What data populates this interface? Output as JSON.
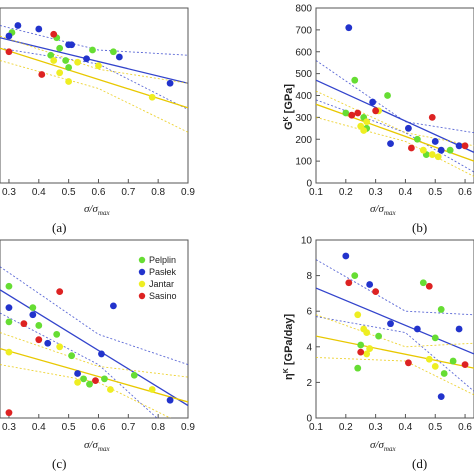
{
  "chart_data": [
    {
      "panel": "(a)",
      "type": "scatter",
      "xlabel": "σ/σmax",
      "ylabel": "",
      "x_ticks": [
        "0.3",
        "0.4",
        "0.5",
        "0.6",
        "0.7",
        "0.8",
        "0.9"
      ],
      "y_ticks": [],
      "xlim": [
        0.27,
        0.9
      ],
      "ylim": [
        0,
        10
      ],
      "series": [
        {
          "name": "Pelplin",
          "color": "#66dd33",
          "points": [
            [
              0.31,
              8.6
            ],
            [
              0.46,
              8.3
            ],
            [
              0.47,
              7.7
            ],
            [
              0.49,
              7.0
            ],
            [
              0.58,
              7.6
            ],
            [
              0.65,
              7.5
            ],
            [
              0.5,
              6.6
            ],
            [
              0.44,
              7.3
            ]
          ]
        },
        {
          "name": "Pasłek",
          "color": "#2233cc",
          "points": [
            [
              0.3,
              8.4
            ],
            [
              0.33,
              9.0
            ],
            [
              0.4,
              8.8
            ],
            [
              0.5,
              7.9
            ],
            [
              0.51,
              7.9
            ],
            [
              0.56,
              7.1
            ],
            [
              0.67,
              7.2
            ],
            [
              0.84,
              5.7
            ]
          ]
        },
        {
          "name": "Jantar",
          "color": "#eeee22",
          "points": [
            [
              0.45,
              7.0
            ],
            [
              0.47,
              6.3
            ],
            [
              0.5,
              5.8
            ],
            [
              0.53,
              6.9
            ],
            [
              0.6,
              6.7
            ],
            [
              0.78,
              4.9
            ]
          ]
        },
        {
          "name": "Sasino",
          "color": "#dd2222",
          "points": [
            [
              0.3,
              7.5
            ],
            [
              0.41,
              6.2
            ],
            [
              0.45,
              8.5
            ]
          ]
        }
      ],
      "fits": [
        {
          "series": "Pasłek",
          "color": "#3344cc",
          "line": [
            [
              0.27,
              8.3
            ],
            [
              0.9,
              5.7
            ]
          ],
          "ci_upper": [
            [
              0.27,
              9.0
            ],
            [
              0.6,
              7.6
            ],
            [
              0.9,
              7.3
            ]
          ],
          "ci_lower": [
            [
              0.27,
              7.7
            ],
            [
              0.6,
              6.8
            ],
            [
              0.9,
              4.2
            ]
          ]
        },
        {
          "series": "Jantar",
          "color": "#e8c800",
          "line": [
            [
              0.27,
              7.7
            ],
            [
              0.9,
              4.3
            ]
          ],
          "ci_upper": [
            [
              0.27,
              8.4
            ],
            [
              0.6,
              6.5
            ],
            [
              0.9,
              5.7
            ]
          ],
          "ci_lower": [
            [
              0.27,
              7.0
            ],
            [
              0.6,
              5.4
            ],
            [
              0.9,
              2.9
            ]
          ]
        }
      ]
    },
    {
      "panel": "(b)",
      "type": "scatter",
      "xlabel": "σ/σmax",
      "ylabel": "G^K [GPa]",
      "x_ticks": [
        "0.1",
        "0.2",
        "0.3",
        "0.4",
        "0.5",
        "0.6"
      ],
      "y_ticks": [
        "0",
        "100",
        "200",
        "300",
        "400",
        "500",
        "600",
        "700",
        "800"
      ],
      "xlim": [
        0.1,
        0.63
      ],
      "ylim": [
        0,
        800
      ],
      "series": [
        {
          "name": "Pelplin",
          "color": "#66dd33",
          "points": [
            [
              0.23,
              470
            ],
            [
              0.26,
              300
            ],
            [
              0.27,
              250
            ],
            [
              0.34,
              400
            ],
            [
              0.44,
              200
            ],
            [
              0.47,
              130
            ],
            [
              0.55,
              150
            ],
            [
              0.2,
              320
            ]
          ]
        },
        {
          "name": "Pasłek",
          "color": "#2233cc",
          "points": [
            [
              0.21,
              710
            ],
            [
              0.29,
              370
            ],
            [
              0.35,
              180
            ],
            [
              0.41,
              250
            ],
            [
              0.5,
              190
            ],
            [
              0.52,
              150
            ],
            [
              0.58,
              170
            ]
          ]
        },
        {
          "name": "Jantar",
          "color": "#eeee22",
          "points": [
            [
              0.25,
              260
            ],
            [
              0.26,
              240
            ],
            [
              0.27,
              280
            ],
            [
              0.31,
              330
            ],
            [
              0.46,
              150
            ],
            [
              0.49,
              130
            ],
            [
              0.51,
              120
            ]
          ]
        },
        {
          "name": "Sasino",
          "color": "#dd2222",
          "points": [
            [
              0.22,
              310
            ],
            [
              0.24,
              320
            ],
            [
              0.3,
              330
            ],
            [
              0.42,
              160
            ],
            [
              0.49,
              300
            ],
            [
              0.6,
              170
            ]
          ]
        }
      ],
      "fits": [
        {
          "series": "Pasłek",
          "color": "#3344cc",
          "line": [
            [
              0.1,
              470
            ],
            [
              0.63,
              140
            ]
          ],
          "ci_upper": [
            [
              0.1,
              560
            ],
            [
              0.4,
              280
            ],
            [
              0.63,
              230
            ]
          ],
          "ci_lower": [
            [
              0.1,
              380
            ],
            [
              0.4,
              230
            ],
            [
              0.63,
              50
            ]
          ]
        },
        {
          "series": "Jantar",
          "color": "#e8c800",
          "line": [
            [
              0.1,
              360
            ],
            [
              0.63,
              100
            ]
          ],
          "ci_upper": [
            [
              0.1,
              420
            ],
            [
              0.4,
              230
            ],
            [
              0.63,
              170
            ]
          ],
          "ci_lower": [
            [
              0.1,
              300
            ],
            [
              0.4,
              190
            ],
            [
              0.63,
              30
            ]
          ]
        }
      ]
    },
    {
      "panel": "(c)",
      "type": "scatter",
      "xlabel": "σ/σmax",
      "ylabel": "",
      "x_ticks": [
        "0.3",
        "0.4",
        "0.5",
        "0.6",
        "0.7",
        "0.8",
        "0.9"
      ],
      "y_ticks": [],
      "xlim": [
        0.27,
        0.9
      ],
      "ylim": [
        0,
        10
      ],
      "legend": {
        "position": "top-right",
        "entries": [
          "Pelplin",
          "Pasłek",
          "Jantar",
          "Sasino"
        ]
      },
      "series": [
        {
          "name": "Pelplin",
          "color": "#66dd33",
          "points": [
            [
              0.3,
              7.4
            ],
            [
              0.3,
              5.4
            ],
            [
              0.38,
              6.2
            ],
            [
              0.4,
              5.2
            ],
            [
              0.46,
              4.7
            ],
            [
              0.51,
              3.5
            ],
            [
              0.55,
              2.2
            ],
            [
              0.57,
              1.9
            ],
            [
              0.62,
              2.2
            ],
            [
              0.72,
              2.4
            ]
          ]
        },
        {
          "name": "Pasłek",
          "color": "#2233cc",
          "points": [
            [
              0.3,
              6.2
            ],
            [
              0.38,
              5.8
            ],
            [
              0.43,
              4.2
            ],
            [
              0.53,
              2.5
            ],
            [
              0.61,
              3.6
            ],
            [
              0.65,
              6.3
            ],
            [
              0.84,
              1.0
            ]
          ]
        },
        {
          "name": "Jantar",
          "color": "#eeee22",
          "points": [
            [
              0.3,
              3.7
            ],
            [
              0.47,
              4.0
            ],
            [
              0.53,
              2.0
            ],
            [
              0.64,
              1.6
            ],
            [
              0.78,
              1.6
            ]
          ]
        },
        {
          "name": "Sasino",
          "color": "#dd2222",
          "points": [
            [
              0.35,
              5.3
            ],
            [
              0.4,
              4.4
            ],
            [
              0.47,
              7.1
            ],
            [
              0.59,
              2.1
            ],
            [
              0.3,
              0.3
            ]
          ]
        }
      ],
      "fits": [
        {
          "series": "Pasłek",
          "color": "#3344cc",
          "line": [
            [
              0.27,
              7.2
            ],
            [
              0.9,
              0.7
            ]
          ],
          "ci_upper": [
            [
              0.27,
              8.5
            ],
            [
              0.6,
              4.7
            ],
            [
              0.9,
              3.0
            ]
          ],
          "ci_lower": [
            [
              0.27,
              5.9
            ],
            [
              0.6,
              3.0
            ],
            [
              0.9,
              -1.6
            ]
          ]
        },
        {
          "series": "Jantar",
          "color": "#e8c800",
          "line": [
            [
              0.27,
              3.9
            ],
            [
              0.9,
              0.9
            ]
          ],
          "ci_upper": [
            [
              0.27,
              4.8
            ],
            [
              0.6,
              2.9
            ],
            [
              0.9,
              2.3
            ]
          ],
          "ci_lower": [
            [
              0.27,
              3.0
            ],
            [
              0.6,
              2.0
            ],
            [
              0.9,
              -0.5
            ]
          ]
        }
      ]
    },
    {
      "panel": "(d)",
      "type": "scatter",
      "xlabel": "σ/σmax",
      "ylabel": "η^K [GPa/day]",
      "x_ticks": [
        "0.1",
        "0.2",
        "0.3",
        "0.4",
        "0.5",
        "0.6"
      ],
      "y_ticks": [
        "0",
        "2",
        "4",
        "6",
        "8",
        "10"
      ],
      "xlim": [
        0.1,
        0.63
      ],
      "ylim": [
        0,
        10
      ],
      "series": [
        {
          "name": "Pelplin",
          "color": "#66dd33",
          "points": [
            [
              0.23,
              8.0
            ],
            [
              0.25,
              4.1
            ],
            [
              0.24,
              2.8
            ],
            [
              0.31,
              4.6
            ],
            [
              0.46,
              7.6
            ],
            [
              0.5,
              4.5
            ],
            [
              0.52,
              6.1
            ],
            [
              0.53,
              2.5
            ],
            [
              0.56,
              3.2
            ]
          ]
        },
        {
          "name": "Pasłek",
          "color": "#2233cc",
          "points": [
            [
              0.2,
              9.1
            ],
            [
              0.28,
              7.5
            ],
            [
              0.35,
              5.3
            ],
            [
              0.44,
              5.0
            ],
            [
              0.52,
              1.2
            ],
            [
              0.58,
              5.0
            ]
          ]
        },
        {
          "name": "Jantar",
          "color": "#eeee22",
          "points": [
            [
              0.24,
              5.8
            ],
            [
              0.26,
              5.0
            ],
            [
              0.27,
              4.8
            ],
            [
              0.28,
              3.9
            ],
            [
              0.27,
              3.6
            ],
            [
              0.48,
              3.3
            ],
            [
              0.5,
              2.9
            ]
          ]
        },
        {
          "name": "Sasino",
          "color": "#dd2222",
          "points": [
            [
              0.21,
              7.6
            ],
            [
              0.25,
              3.7
            ],
            [
              0.3,
              7.1
            ],
            [
              0.41,
              3.1
            ],
            [
              0.48,
              7.4
            ],
            [
              0.6,
              3.0
            ]
          ]
        }
      ],
      "fits": [
        {
          "series": "Pasłek",
          "color": "#3344cc",
          "line": [
            [
              0.1,
              7.3
            ],
            [
              0.63,
              3.6
            ]
          ],
          "ci_upper": [
            [
              0.1,
              8.9
            ],
            [
              0.4,
              6.0
            ],
            [
              0.63,
              5.8
            ]
          ],
          "ci_lower": [
            [
              0.1,
              5.7
            ],
            [
              0.4,
              4.8
            ],
            [
              0.63,
              1.5
            ]
          ]
        },
        {
          "series": "Jantar",
          "color": "#e8c800",
          "line": [
            [
              0.1,
              4.6
            ],
            [
              0.63,
              2.8
            ]
          ],
          "ci_upper": [
            [
              0.1,
              5.8
            ],
            [
              0.4,
              4.0
            ],
            [
              0.63,
              4.2
            ]
          ],
          "ci_lower": [
            [
              0.1,
              3.4
            ],
            [
              0.4,
              3.2
            ],
            [
              0.63,
              1.3
            ]
          ]
        }
      ]
    }
  ],
  "captions": {
    "a": "(a)",
    "b": "(b)",
    "c": "(c)",
    "d": "(d)"
  },
  "axis_titles": {
    "sigma_main": "σ/σ",
    "sigma_sub": "max",
    "gk_main": "G",
    "gk_sup": "K",
    "gk_unit": " [GPa]",
    "eta_main": "η",
    "eta_sup": "K",
    "eta_unit": " [GPa/day]"
  }
}
